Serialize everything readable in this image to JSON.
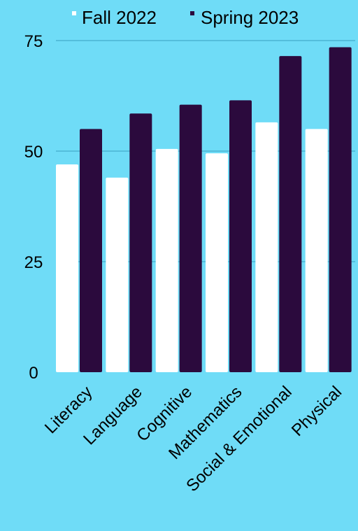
{
  "colors": {
    "background": "#6fdcf7",
    "series_fall": "#ffffff",
    "series_spring": "#2b0a3d",
    "grid": "#3aa0c0",
    "text": "#000000"
  },
  "chart_data": {
    "type": "bar",
    "title": "",
    "xlabel": "",
    "ylabel": "",
    "ylim": [
      0,
      75
    ],
    "yticks": [
      0,
      25,
      50,
      75
    ],
    "ytick_labels": [
      "0",
      "25",
      "50",
      "75"
    ],
    "grid": true,
    "legend_position": "top",
    "categories": [
      "Literacy",
      "Language",
      "Cognitive",
      "Mathematics",
      "Social & Emotional",
      "Physical"
    ],
    "series": [
      {
        "name": "Fall 2022",
        "values": [
          47,
          44,
          50.5,
          49.5,
          56.5,
          55
        ]
      },
      {
        "name": "Spring 2023",
        "values": [
          55,
          58.5,
          60.5,
          61.5,
          71.5,
          73.5
        ]
      }
    ]
  }
}
